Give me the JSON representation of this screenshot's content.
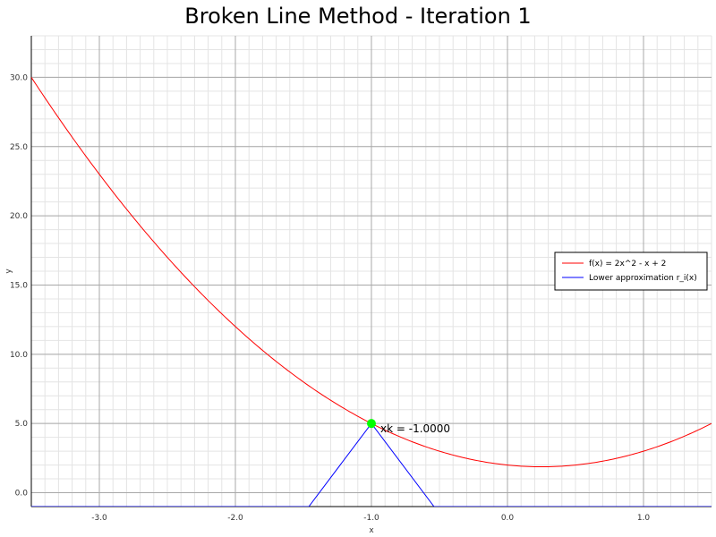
{
  "chart_data": {
    "type": "line",
    "title": "Broken Line Method - Iteration 1",
    "xlabel": "x",
    "ylabel": "y",
    "xlim": [
      -3.5,
      1.5
    ],
    "ylim": [
      -1.0,
      33.0
    ],
    "x_ticks": [
      -3.0,
      -2.0,
      -1.0,
      0.0,
      1.0
    ],
    "x_tick_labels": [
      "-3.0",
      "-2.0",
      "-1.0",
      "0.0",
      "1.0"
    ],
    "y_ticks": [
      0.0,
      5.0,
      10.0,
      15.0,
      20.0,
      25.0,
      30.0
    ],
    "y_tick_labels": [
      "0.0",
      "5.0",
      "10.0",
      "15.0",
      "20.0",
      "25.0",
      "30.0"
    ],
    "grid": true,
    "legend_position": "right",
    "series": [
      {
        "name": "f(x) = 2x^2 - x + 2",
        "color": "#ff0000",
        "style": "solid",
        "function": "2x^2 - x + 2",
        "x": [
          -3.5,
          -3.0,
          -2.5,
          -2.0,
          -1.5,
          -1.0,
          -0.5,
          0.0,
          0.25,
          0.5,
          1.0,
          1.5
        ],
        "y": [
          30.0,
          23.0,
          17.0,
          12.0,
          8.0,
          5.0,
          3.0,
          2.0,
          1.875,
          2.0,
          3.0,
          5.0
        ]
      },
      {
        "name": "Lower approximation r_i(x)",
        "color": "#0000ff",
        "style": "solid",
        "x": [
          -3.5,
          -1.46,
          -1.0,
          -0.54,
          1.5
        ],
        "y": [
          -1.0,
          -1.0,
          5.0,
          -1.0,
          -1.0
        ]
      }
    ],
    "marker": {
      "x": -1.0,
      "y": 5.0,
      "color": "#00ff00",
      "label": "xk = -1.0000"
    }
  }
}
